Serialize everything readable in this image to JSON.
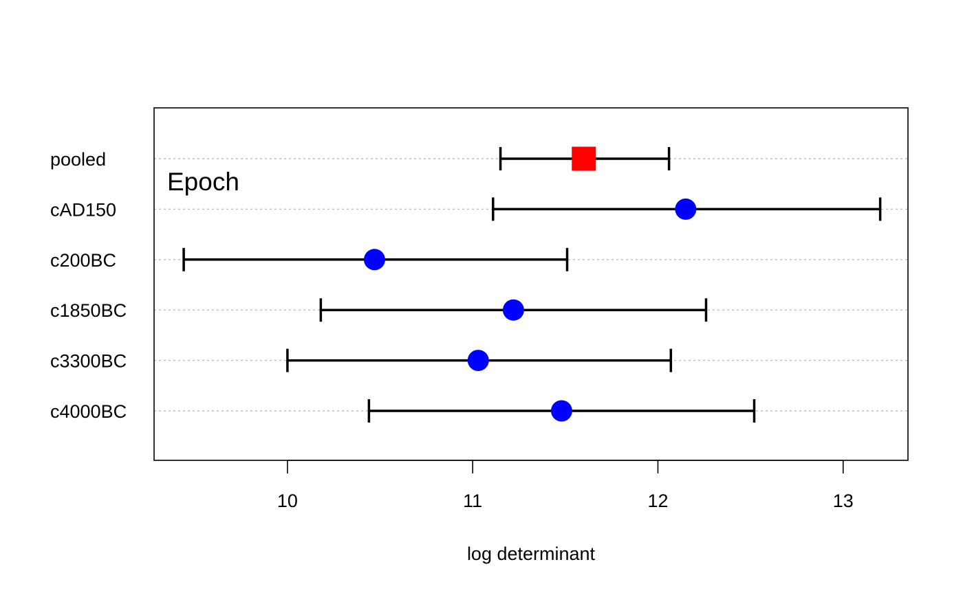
{
  "chart_data": {
    "type": "dotplot-errorbar",
    "title": "",
    "xlabel": "log determinant",
    "ylabel": "",
    "panel_label": "Epoch",
    "xlim": [
      9.28,
      13.35
    ],
    "x_ticks": [
      10,
      11,
      12,
      13
    ],
    "x_tick_labels": [
      "10",
      "11",
      "12",
      "13"
    ],
    "grid": "horizontal dotted at each category",
    "categories": [
      "c4000BC",
      "c3300BC",
      "c1850BC",
      "c200BC",
      "cAD150",
      "pooled"
    ],
    "estimates": [
      11.48,
      11.03,
      11.22,
      10.47,
      12.15,
      11.6
    ],
    "lower": [
      10.44,
      10.0,
      10.18,
      9.44,
      11.11,
      11.15
    ],
    "upper": [
      12.52,
      12.07,
      12.26,
      11.51,
      13.2,
      12.06
    ],
    "marker_shapes": [
      "circle",
      "circle",
      "circle",
      "circle",
      "circle",
      "square"
    ],
    "colors": {
      "group": "#0000ff",
      "pooled": "#ff0000",
      "errorbar": "#000000",
      "grid": "#bebebe",
      "frame": "#000000"
    }
  }
}
